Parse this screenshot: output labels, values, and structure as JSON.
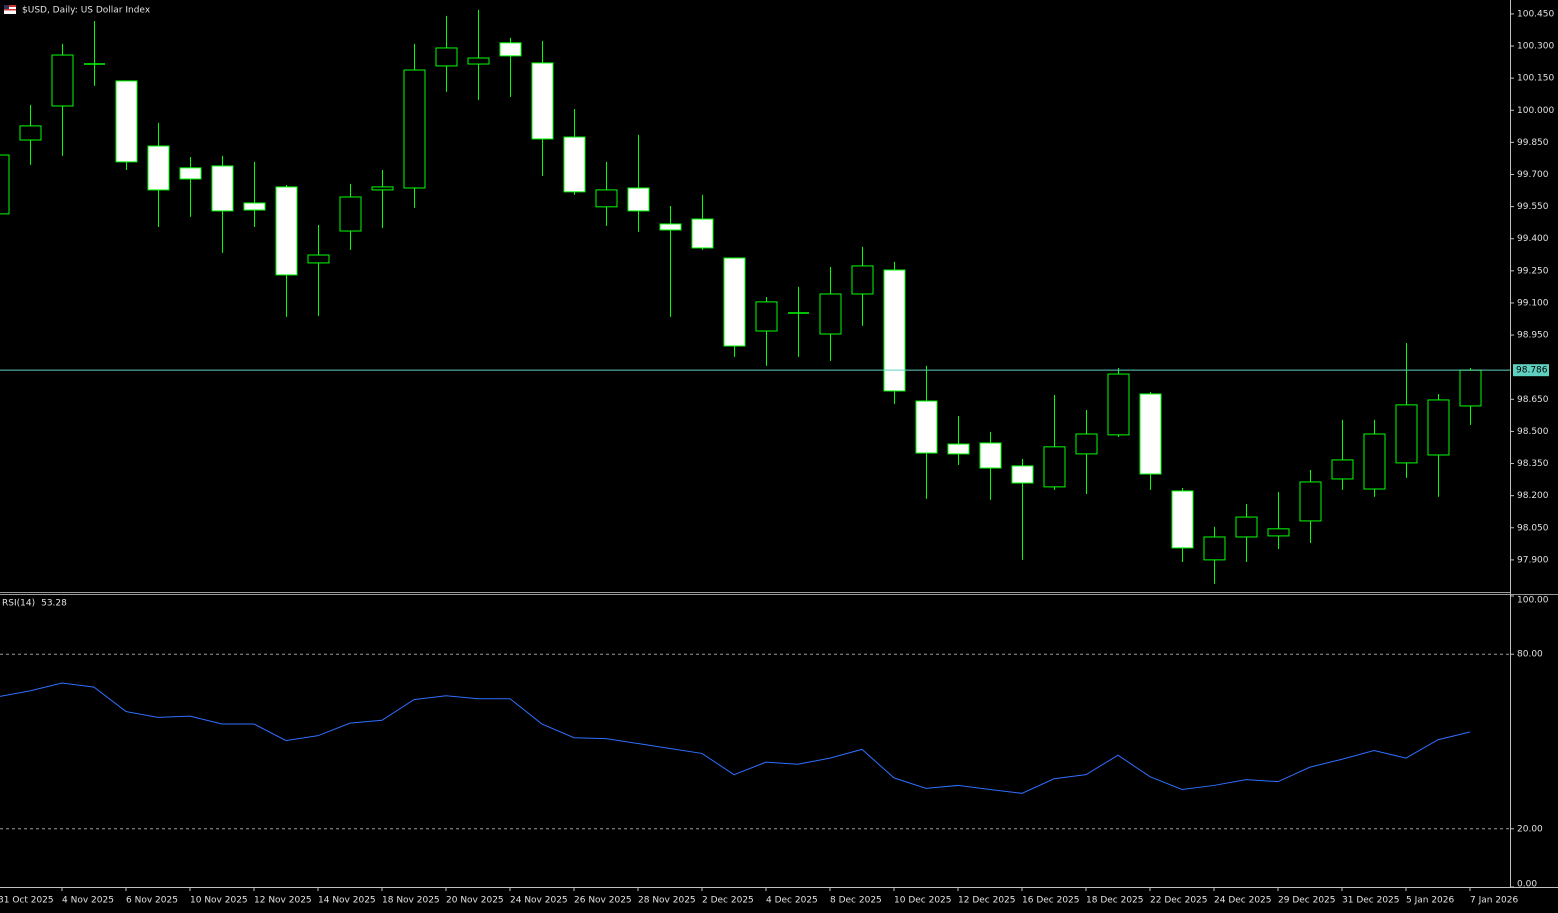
{
  "chart_data": [
    {
      "type": "candlestick",
      "title": "$USD, Daily:  US Dollar Index",
      "categories": [
        "31 Oct 2025",
        null,
        "4 Nov 2025",
        null,
        "6 Nov 2025",
        null,
        "10 Nov 2025",
        null,
        "12 Nov 2025",
        null,
        "14 Nov 2025",
        null,
        "18 Nov 2025",
        null,
        "20 Nov 2025",
        null,
        "24 Nov 2025",
        null,
        "26 Nov 2025",
        null,
        "28 Nov 2025",
        null,
        "2 Dec 2025",
        null,
        "4 Dec 2025",
        null,
        "8 Dec 2025",
        null,
        "10 Dec 2025",
        null,
        "12 Dec 2025",
        null,
        "16 Dec 2025",
        null,
        "18 Dec 2025",
        null,
        "22 Dec 2025",
        null,
        "24 Dec 2025",
        null,
        "29 Dec 2025",
        null,
        "31 Dec 2025",
        null,
        "5 Jan 2026",
        null,
        "7 Jan 2026"
      ],
      "open": [
        99.516,
        99.861,
        100.02,
        100.216,
        100.137,
        99.833,
        99.731,
        99.74,
        99.567,
        99.642,
        99.287,
        99.436,
        99.628,
        99.637,
        100.207,
        100.216,
        100.315,
        100.221,
        99.875,
        99.549,
        99.637,
        99.469,
        99.492,
        99.31,
        98.969,
        99.053,
        98.955,
        99.142,
        99.254,
        98.642,
        98.441,
        98.446,
        98.339,
        98.241,
        98.395,
        98.484,
        98.675,
        98.222,
        97.9,
        98.007,
        98.012,
        98.082,
        98.278,
        98.231,
        98.353,
        98.39,
        98.619
      ],
      "high": [
        99.815,
        100.025,
        100.31,
        100.417,
        100.137,
        99.941,
        99.782,
        99.787,
        99.759,
        99.651,
        99.464,
        99.656,
        99.721,
        100.31,
        100.441,
        100.469,
        100.338,
        100.324,
        100.006,
        99.759,
        99.885,
        99.553,
        99.605,
        99.31,
        99.128,
        99.175,
        99.268,
        99.362,
        99.292,
        98.806,
        98.572,
        98.498,
        98.371,
        98.67,
        98.6,
        98.796,
        98.684,
        98.236,
        98.054,
        98.161,
        98.217,
        98.32,
        98.554,
        98.554,
        98.913,
        98.675,
        98.796
      ],
      "low": [
        99.507,
        99.745,
        99.787,
        100.114,
        99.721,
        99.455,
        99.502,
        99.334,
        99.455,
        99.035,
        99.039,
        99.348,
        99.45,
        99.544,
        100.086,
        100.048,
        100.062,
        99.693,
        99.605,
        99.46,
        99.432,
        99.035,
        99.348,
        98.848,
        98.806,
        98.848,
        98.829,
        98.993,
        98.628,
        98.185,
        98.343,
        98.18,
        97.9,
        98.227,
        98.208,
        98.474,
        98.227,
        97.89,
        97.788,
        97.89,
        97.951,
        97.979,
        98.227,
        98.194,
        98.283,
        98.194,
        98.53
      ],
      "close": [
        99.791,
        99.927,
        100.258,
        100.216,
        99.759,
        99.628,
        99.679,
        99.53,
        99.534,
        99.231,
        99.324,
        99.595,
        99.642,
        100.188,
        100.291,
        100.244,
        100.254,
        99.866,
        99.619,
        99.628,
        99.53,
        99.441,
        99.357,
        98.899,
        99.105,
        99.053,
        99.142,
        99.273,
        98.689,
        98.399,
        98.395,
        98.329,
        98.259,
        98.428,
        98.488,
        98.768,
        98.301,
        97.956,
        98.007,
        98.1,
        98.045,
        98.264,
        98.367,
        98.488,
        98.624,
        98.647,
        98.786
      ],
      "up_color": "#000000",
      "down_color": "#ffffff",
      "wick_color": "#00ff00",
      "current_price": 98.786,
      "current_price_color": "#5fd0c0",
      "ylim": [
        97.75,
        100.515
      ],
      "yticks": [
        {
          "value": 100.45,
          "label": "100.450"
        },
        {
          "value": 100.3,
          "label": "100.300"
        },
        {
          "value": 100.15,
          "label": "100.150"
        },
        {
          "value": 100.0,
          "label": "100.000"
        },
        {
          "value": 99.85,
          "label": "99.850"
        },
        {
          "value": 99.7,
          "label": "99.700"
        },
        {
          "value": 99.55,
          "label": "99.550"
        },
        {
          "value": 99.4,
          "label": "99.400"
        },
        {
          "value": 99.25,
          "label": "99.250"
        },
        {
          "value": 99.1,
          "label": "99.100"
        },
        {
          "value": 98.95,
          "label": "98.950"
        },
        {
          "value": 98.65,
          "label": "98.650"
        },
        {
          "value": 98.5,
          "label": "98.500"
        },
        {
          "value": 98.35,
          "label": "98.350"
        },
        {
          "value": 98.2,
          "label": "98.200"
        },
        {
          "value": 98.05,
          "label": "98.050"
        },
        {
          "value": 97.9,
          "label": "97.900"
        }
      ]
    },
    {
      "type": "line",
      "title": "RSI(14)",
      "color": "#2f6fff",
      "values": [
        65.4,
        67.4,
        70.1,
        68.7,
        60.3,
        58.3,
        58.7,
        56.0,
        56.0,
        50.3,
        52.0,
        56.3,
        57.3,
        64.4,
        65.7,
        64.7,
        64.7,
        56.0,
        51.3,
        51.0,
        49.3,
        47.6,
        45.9,
        38.6,
        42.9,
        42.2,
        44.3,
        47.3,
        37.5,
        33.9,
        34.9,
        33.5,
        32.2,
        37.2,
        38.6,
        45.3,
        37.9,
        33.5,
        34.9,
        36.9,
        36.2,
        41.2,
        43.9,
        46.9,
        44.3,
        50.6,
        53.28
      ],
      "ylim": [
        0,
        100
      ],
      "yticks": [
        {
          "value": 100,
          "label": "100.00"
        },
        {
          "value": 80,
          "label": "80.00"
        },
        {
          "value": 20,
          "label": "20.00"
        },
        {
          "value": 0,
          "label": "0.00"
        }
      ],
      "levels": [
        80,
        20
      ]
    }
  ]
}
